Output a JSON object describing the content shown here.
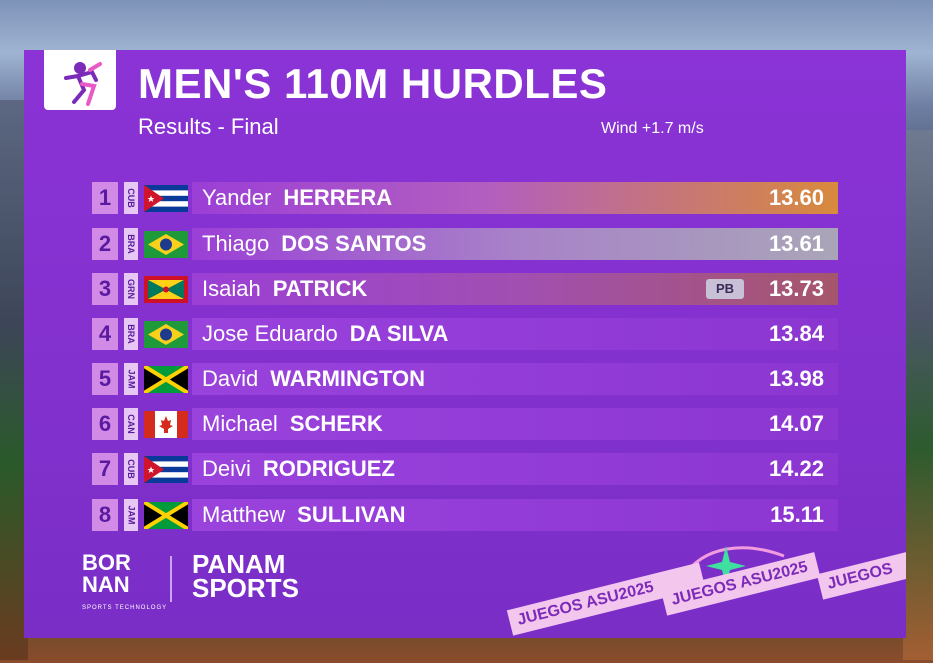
{
  "event": {
    "title": "MEN'S 110M HURDLES",
    "subtitle": "Results - Final",
    "wind": "Wind +1.7 m/s"
  },
  "results": [
    {
      "rank": "1",
      "nat": "CUB",
      "first": "Yander",
      "last": "HERRERA",
      "time": "13.60",
      "pb": ""
    },
    {
      "rank": "2",
      "nat": "BRA",
      "first": "Thiago",
      "last": "DOS SANTOS",
      "time": "13.61",
      "pb": ""
    },
    {
      "rank": "3",
      "nat": "GRN",
      "first": "Isaiah",
      "last": "PATRICK",
      "time": "13.73",
      "pb": "PB"
    },
    {
      "rank": "4",
      "nat": "BRA",
      "first": "Jose Eduardo",
      "last": "DA SILVA",
      "time": "13.84",
      "pb": ""
    },
    {
      "rank": "5",
      "nat": "JAM",
      "first": "David",
      "last": "WARMINGTON",
      "time": "13.98",
      "pb": ""
    },
    {
      "rank": "6",
      "nat": "CAN",
      "first": "Michael",
      "last": "SCHERK",
      "time": "14.07",
      "pb": ""
    },
    {
      "rank": "7",
      "nat": "CUB",
      "first": "Deivi",
      "last": "RODRIGUEZ",
      "time": "14.22",
      "pb": ""
    },
    {
      "rank": "8",
      "nat": "JAM",
      "first": "Matthew",
      "last": "SULLIVAN",
      "time": "15.11",
      "pb": ""
    }
  ],
  "sponsors": {
    "bornan_line1": "BOR",
    "bornan_line2": "NAN",
    "bornan_tag": "SPORTS TECHNOLOGY",
    "panam_line1": "PANAM",
    "panam_line2": "SPORTS"
  },
  "ribbon": {
    "text1": "JUEGOS ASU2025",
    "text2": "JUEGOS ASU2025",
    "text3": "JUEGOS"
  },
  "colors": {
    "panel": "#8431d0",
    "gold": "#d98a3a",
    "silver": "#9b95b5",
    "bronze": "#a0525a",
    "row": "#9a42dc"
  },
  "icons": {
    "sport": "hurdler-icon"
  }
}
